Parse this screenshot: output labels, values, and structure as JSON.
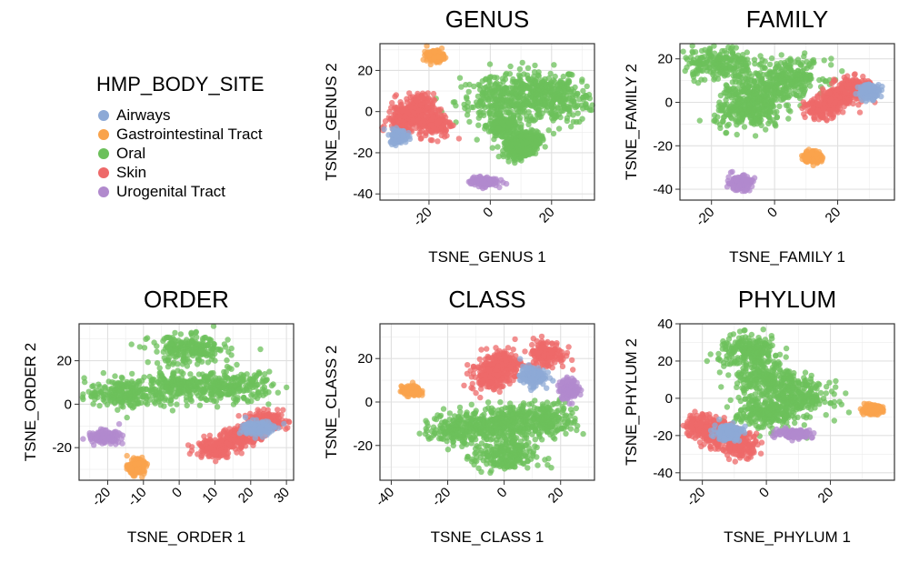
{
  "legend": {
    "title": "HMP_BODY_SITE",
    "items": [
      {
        "label": "Airways",
        "color": "#8DA9D6"
      },
      {
        "label": "Gastrointestinal Tract",
        "color": "#F9A34C"
      },
      {
        "label": "Oral",
        "color": "#6CC05B"
      },
      {
        "label": "Skin",
        "color": "#EE6A6A"
      },
      {
        "label": "Urogenital Tract",
        "color": "#B18ACD"
      }
    ]
  },
  "chart_data": [
    {
      "type": "scatter",
      "title": "GENUS",
      "xlabel": "TSNE_GENUS 1",
      "ylabel": "TSNE_GENUS 2",
      "xlim": [
        -36,
        34
      ],
      "ylim": [
        -43,
        33
      ],
      "xticks": [
        -20,
        0,
        20
      ],
      "yticks": [
        -40,
        -20,
        0,
        20
      ],
      "grid": true,
      "clusters": [
        {
          "series": "Oral",
          "x": [
            15,
            3,
            22
          ],
          "y": [
            10,
            5,
            5
          ],
          "spread": [
            13,
            10
          ]
        },
        {
          "series": "Oral",
          "x": [
            12,
            9,
            4
          ],
          "y": [
            -14,
            -18,
            -7
          ],
          "spread": [
            4,
            4
          ]
        },
        {
          "series": "Skin",
          "x": [
            -28,
            -24,
            -18
          ],
          "y": [
            -4,
            2,
            -6
          ],
          "spread": [
            5,
            6
          ]
        },
        {
          "series": "Airways",
          "x": [
            -30
          ],
          "y": [
            -12
          ],
          "spread": [
            2.5,
            3
          ]
        },
        {
          "series": "Gastrointestinal Tract",
          "x": [
            -18
          ],
          "y": [
            27
          ],
          "spread": [
            2.5,
            2.5
          ]
        },
        {
          "series": "Urogenital Tract",
          "x": [
            -2
          ],
          "y": [
            -34
          ],
          "spread": [
            4,
            2
          ]
        }
      ]
    },
    {
      "type": "scatter",
      "title": "FAMILY",
      "xlabel": "TSNE_FAMILY 1",
      "ylabel": "TSNE_FAMILY 2",
      "xlim": [
        -30,
        38
      ],
      "ylim": [
        -45,
        27
      ],
      "xticks": [
        -20,
        0,
        20
      ],
      "yticks": [
        -40,
        -20,
        0,
        20
      ],
      "grid": true,
      "clusters": [
        {
          "series": "Oral",
          "x": [
            -5,
            -18,
            -8,
            5
          ],
          "y": [
            5,
            18,
            -5,
            12
          ],
          "spread": [
            10,
            7
          ]
        },
        {
          "series": "Skin",
          "x": [
            20,
            25,
            15
          ],
          "y": [
            2,
            7,
            -3
          ],
          "spread": [
            5,
            4
          ]
        },
        {
          "series": "Airways",
          "x": [
            30
          ],
          "y": [
            5
          ],
          "spread": [
            3,
            3
          ]
        },
        {
          "series": "Gastrointestinal Tract",
          "x": [
            12
          ],
          "y": [
            -25
          ],
          "spread": [
            2.5,
            2.5
          ]
        },
        {
          "series": "Urogenital Tract",
          "x": [
            -11
          ],
          "y": [
            -37
          ],
          "spread": [
            3.5,
            3
          ]
        }
      ]
    },
    {
      "type": "scatter",
      "title": "ORDER",
      "xlabel": "TSNE_ORDER 1",
      "ylabel": "TSNE_ORDER 2",
      "xlim": [
        -28,
        32
      ],
      "ylim": [
        -35,
        37
      ],
      "xticks": [
        -20,
        -10,
        0,
        10,
        20,
        30
      ],
      "yticks": [
        -20,
        0,
        20
      ],
      "grid": true,
      "clusters": [
        {
          "series": "Oral",
          "x": [
            0,
            -15,
            15,
            3
          ],
          "y": [
            8,
            5,
            8,
            25
          ],
          "spread": [
            10,
            6
          ]
        },
        {
          "series": "Skin",
          "x": [
            17,
            25,
            10
          ],
          "y": [
            -15,
            -8,
            -20
          ],
          "spread": [
            5,
            4
          ]
        },
        {
          "series": "Airways",
          "x": [
            22
          ],
          "y": [
            -11
          ],
          "spread": [
            4,
            3
          ]
        },
        {
          "series": "Gastrointestinal Tract",
          "x": [
            -12
          ],
          "y": [
            -29
          ],
          "spread": [
            2,
            3
          ]
        },
        {
          "series": "Urogenital Tract",
          "x": [
            -21
          ],
          "y": [
            -15
          ],
          "spread": [
            4,
            2.5
          ]
        }
      ]
    },
    {
      "type": "scatter",
      "title": "CLASS",
      "xlabel": "TSNE_CLASS 1",
      "ylabel": "TSNE_CLASS 2",
      "xlim": [
        -44,
        32
      ],
      "ylim": [
        -36,
        36
      ],
      "xticks": [
        -40,
        -20,
        0,
        20
      ],
      "yticks": [
        -20,
        0,
        20
      ],
      "grid": true,
      "clusters": [
        {
          "series": "Oral",
          "x": [
            0,
            -15,
            15,
            0
          ],
          "y": [
            -10,
            -12,
            -8,
            -25
          ],
          "spread": [
            10,
            7
          ]
        },
        {
          "series": "Skin",
          "x": [
            0,
            15,
            -5
          ],
          "y": [
            18,
            22,
            12
          ],
          "spread": [
            6,
            6
          ]
        },
        {
          "series": "Airways",
          "x": [
            10
          ],
          "y": [
            12
          ],
          "spread": [
            4,
            4
          ]
        },
        {
          "series": "Gastrointestinal Tract",
          "x": [
            -33
          ],
          "y": [
            5
          ],
          "spread": [
            3,
            2
          ]
        },
        {
          "series": "Urogenital Tract",
          "x": [
            23
          ],
          "y": [
            6
          ],
          "spread": [
            3,
            4
          ]
        }
      ]
    },
    {
      "type": "scatter",
      "title": "PHYLUM",
      "xlabel": "TSNE_PHYLUM 1",
      "ylabel": "TSNE_PHYLUM 2",
      "xlim": [
        -27,
        40
      ],
      "ylim": [
        -44,
        40
      ],
      "xticks": [
        -20,
        0,
        20
      ],
      "yticks": [
        -40,
        -20,
        0,
        20,
        40
      ],
      "grid": true,
      "clusters": [
        {
          "series": "Oral",
          "x": [
            0,
            -5,
            10,
            0
          ],
          "y": [
            10,
            25,
            0,
            -8
          ],
          "spread": [
            9,
            8
          ]
        },
        {
          "series": "Skin",
          "x": [
            -15,
            -8,
            -20
          ],
          "y": [
            -20,
            -25,
            -15
          ],
          "spread": [
            5,
            6
          ]
        },
        {
          "series": "Airways",
          "x": [
            -12
          ],
          "y": [
            -18
          ],
          "spread": [
            4,
            4
          ]
        },
        {
          "series": "Gastrointestinal Tract",
          "x": [
            33
          ],
          "y": [
            -6
          ],
          "spread": [
            3,
            2
          ]
        },
        {
          "series": "Urogenital Tract",
          "x": [
            9
          ],
          "y": [
            -19
          ],
          "spread": [
            5,
            2
          ]
        }
      ]
    }
  ]
}
